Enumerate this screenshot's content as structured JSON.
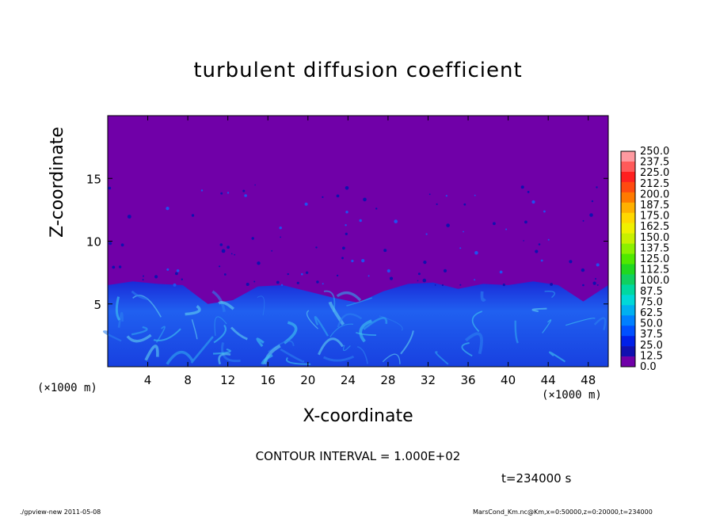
{
  "chart_data": {
    "type": "heatmap",
    "title": "turbulent diffusion coefficient",
    "xlabel": "X-coordinate",
    "ylabel": "Z-coordinate",
    "x_unit_left": "(×1000 m)",
    "x_unit_right": "(×1000 m)",
    "xlim": [
      0,
      50
    ],
    "ylim": [
      0,
      20
    ],
    "xticks": [
      4,
      8,
      12,
      16,
      20,
      24,
      28,
      32,
      36,
      40,
      44,
      48
    ],
    "yticks": [
      5,
      10,
      15
    ],
    "colorbar": {
      "levels": [
        "250.0",
        "237.5",
        "225.0",
        "212.5",
        "200.0",
        "187.5",
        "175.0",
        "162.5",
        "150.0",
        "137.5",
        "125.0",
        "112.5",
        "100.0",
        "87.5",
        "75.0",
        "62.5",
        "50.0",
        "37.5",
        "25.0",
        "12.5",
        "0.0"
      ],
      "colors": [
        "#ff9aa0",
        "#ff5a5a",
        "#ff2020",
        "#ff4a10",
        "#ff7a00",
        "#ffb000",
        "#ffd800",
        "#f0f000",
        "#c8f000",
        "#8cf000",
        "#50e800",
        "#20d820",
        "#10d060",
        "#00d8a0",
        "#00d8d8",
        "#00b0f0",
        "#0080ff",
        "#0050ff",
        "#0020e8",
        "#1010b0",
        "#7000a8"
      ]
    },
    "background_color": "#7000a8",
    "boundary_layer_top_km": [
      6.5,
      6.8,
      6.6,
      6.5,
      5.0,
      5.3,
      6.4,
      6.5,
      6.0,
      5.5,
      5.1,
      6.0,
      6.6,
      6.7,
      6.2,
      6.6,
      6.5,
      6.8,
      6.5,
      5.2,
      6.5
    ]
  },
  "annotations": {
    "contour_interval": "CONTOUR INTERVAL = 1.000E+02",
    "time": "t=234000 s",
    "footer_left": "./gpview-new   2011-05-08",
    "footer_right": "MarsCond_Km.nc@Km,x=0:50000,z=0:20000,t=234000"
  }
}
